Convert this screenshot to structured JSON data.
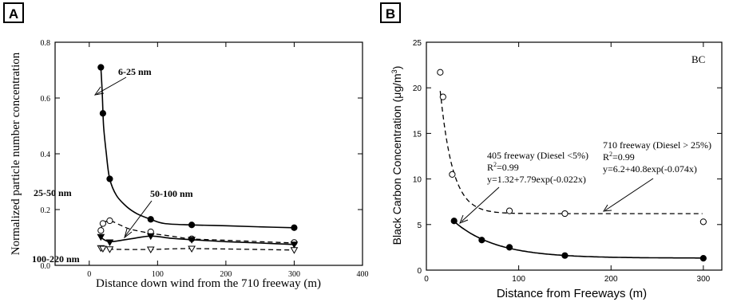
{
  "chart_data": [
    {
      "panel_label": "A",
      "type": "line",
      "xlabel": "Distance down wind from the 710 freeway (m)",
      "ylabel": "Normalized particle number concentration",
      "xlim": [
        -50,
        400
      ],
      "ylim": [
        0,
        0.8
      ],
      "x_ticks": [
        0,
        100,
        200,
        300,
        400
      ],
      "y_ticks": [
        0.0,
        0.2,
        0.4,
        0.6,
        0.8
      ],
      "x_tick_labels": [
        "0",
        "100",
        "200",
        "300",
        "400"
      ],
      "y_tick_labels": [
        "0.0",
        "0.2",
        "0.4",
        "0.6",
        "0.8"
      ],
      "series": [
        {
          "name": "6-25 nm",
          "marker": "filled-circle",
          "line": "solid",
          "x": [
            17,
            20,
            30,
            90,
            150,
            300
          ],
          "y": [
            0.71,
            0.545,
            0.31,
            0.165,
            0.145,
            0.135
          ],
          "curve": [
            [
              17,
              0.71
            ],
            [
              19,
              0.62
            ],
            [
              21,
              0.5
            ],
            [
              25,
              0.4
            ],
            [
              30,
              0.31
            ],
            [
              40,
              0.25
            ],
            [
              55,
              0.21
            ],
            [
              70,
              0.185
            ],
            [
              90,
              0.165
            ],
            [
              110,
              0.15
            ],
            [
              150,
              0.145
            ],
            [
              200,
              0.142
            ],
            [
              250,
              0.138
            ],
            [
              300,
              0.135
            ]
          ]
        },
        {
          "name": "25-50 nm",
          "marker": "open-circle",
          "line": "dashed",
          "x": [
            17,
            20,
            30,
            90,
            150,
            300
          ],
          "y": [
            0.125,
            0.15,
            0.16,
            0.12,
            0.095,
            0.082
          ],
          "curve": [
            [
              17,
              0.125
            ],
            [
              20,
              0.15
            ],
            [
              30,
              0.16
            ],
            [
              45,
              0.145
            ],
            [
              60,
              0.13
            ],
            [
              90,
              0.115
            ],
            [
              120,
              0.105
            ],
            [
              150,
              0.095
            ],
            [
              200,
              0.09
            ],
            [
              250,
              0.085
            ],
            [
              300,
              0.08
            ]
          ]
        },
        {
          "name": "50-100 nm",
          "marker": "filled-triangle-down",
          "line": "solid",
          "x": [
            17,
            30,
            90,
            150,
            300
          ],
          "y": [
            0.102,
            0.083,
            0.105,
            0.092,
            0.075
          ],
          "curve": [
            [
              17,
              0.1
            ],
            [
              30,
              0.085
            ],
            [
              60,
              0.095
            ],
            [
              90,
              0.105
            ],
            [
              120,
              0.097
            ],
            [
              150,
              0.092
            ],
            [
              200,
              0.085
            ],
            [
              250,
              0.08
            ],
            [
              300,
              0.075
            ]
          ]
        },
        {
          "name": "100-220 nm",
          "marker": "open-triangle-down",
          "line": "dashed",
          "x": [
            17,
            20,
            30,
            90,
            150,
            300
          ],
          "y": [
            0.062,
            0.06,
            0.058,
            0.057,
            0.06,
            0.055
          ],
          "curve": [
            [
              17,
              0.063
            ],
            [
              30,
              0.058
            ],
            [
              90,
              0.057
            ],
            [
              150,
              0.06
            ],
            [
              300,
              0.055
            ]
          ]
        }
      ]
    },
    {
      "panel_label": "B",
      "type": "scatter",
      "xlabel": "Distance from Freeways (m)",
      "ylabel": "Black Carbon Concentration (μg/m",
      "ylabel_sup": "3",
      "ylabel_close": ")",
      "xlim": [
        0,
        320
      ],
      "ylim": [
        0,
        25
      ],
      "x_ticks": [
        0,
        100,
        200,
        300
      ],
      "y_ticks": [
        0,
        5,
        10,
        15,
        20,
        25
      ],
      "x_tick_labels": [
        "0",
        "100",
        "200",
        "300"
      ],
      "y_tick_labels": [
        "0",
        "5",
        "10",
        "15",
        "20",
        "25"
      ],
      "corner_label": "BC",
      "series": [
        {
          "name": "710 freeway",
          "marker": "open-circle",
          "line": "dashed",
          "x": [
            15,
            18,
            28,
            90,
            150,
            300
          ],
          "y": [
            21.7,
            19.0,
            10.5,
            6.5,
            6.2,
            5.3
          ],
          "fit": {
            "a": 6.2,
            "b": 40.8,
            "k": -0.074,
            "x_range": [
              15,
              300
            ]
          }
        },
        {
          "name": "405 freeway",
          "marker": "filled-circle",
          "line": "solid",
          "x": [
            30,
            60,
            90,
            150,
            300
          ],
          "y": [
            5.4,
            3.3,
            2.5,
            1.6,
            1.3
          ],
          "fit": {
            "a": 1.32,
            "b": 7.79,
            "k": -0.022,
            "x_range": [
              30,
              300
            ]
          }
        }
      ],
      "annotations": {
        "a405": {
          "line1": "405 freeway (Diesel <5%)",
          "line2_prefix": "R",
          "line2_sup": "2",
          "line2_suffix": "=0.99",
          "line3": "y=1.32+7.79exp(-0.022x)"
        },
        "a710": {
          "line1": "710 freeway (Diesel > 25%)",
          "line2_prefix": "R",
          "line2_sup": "2",
          "line2_suffix": "=0.99",
          "line3": "y=6.2+40.8exp(-0.074x)"
        }
      }
    }
  ]
}
